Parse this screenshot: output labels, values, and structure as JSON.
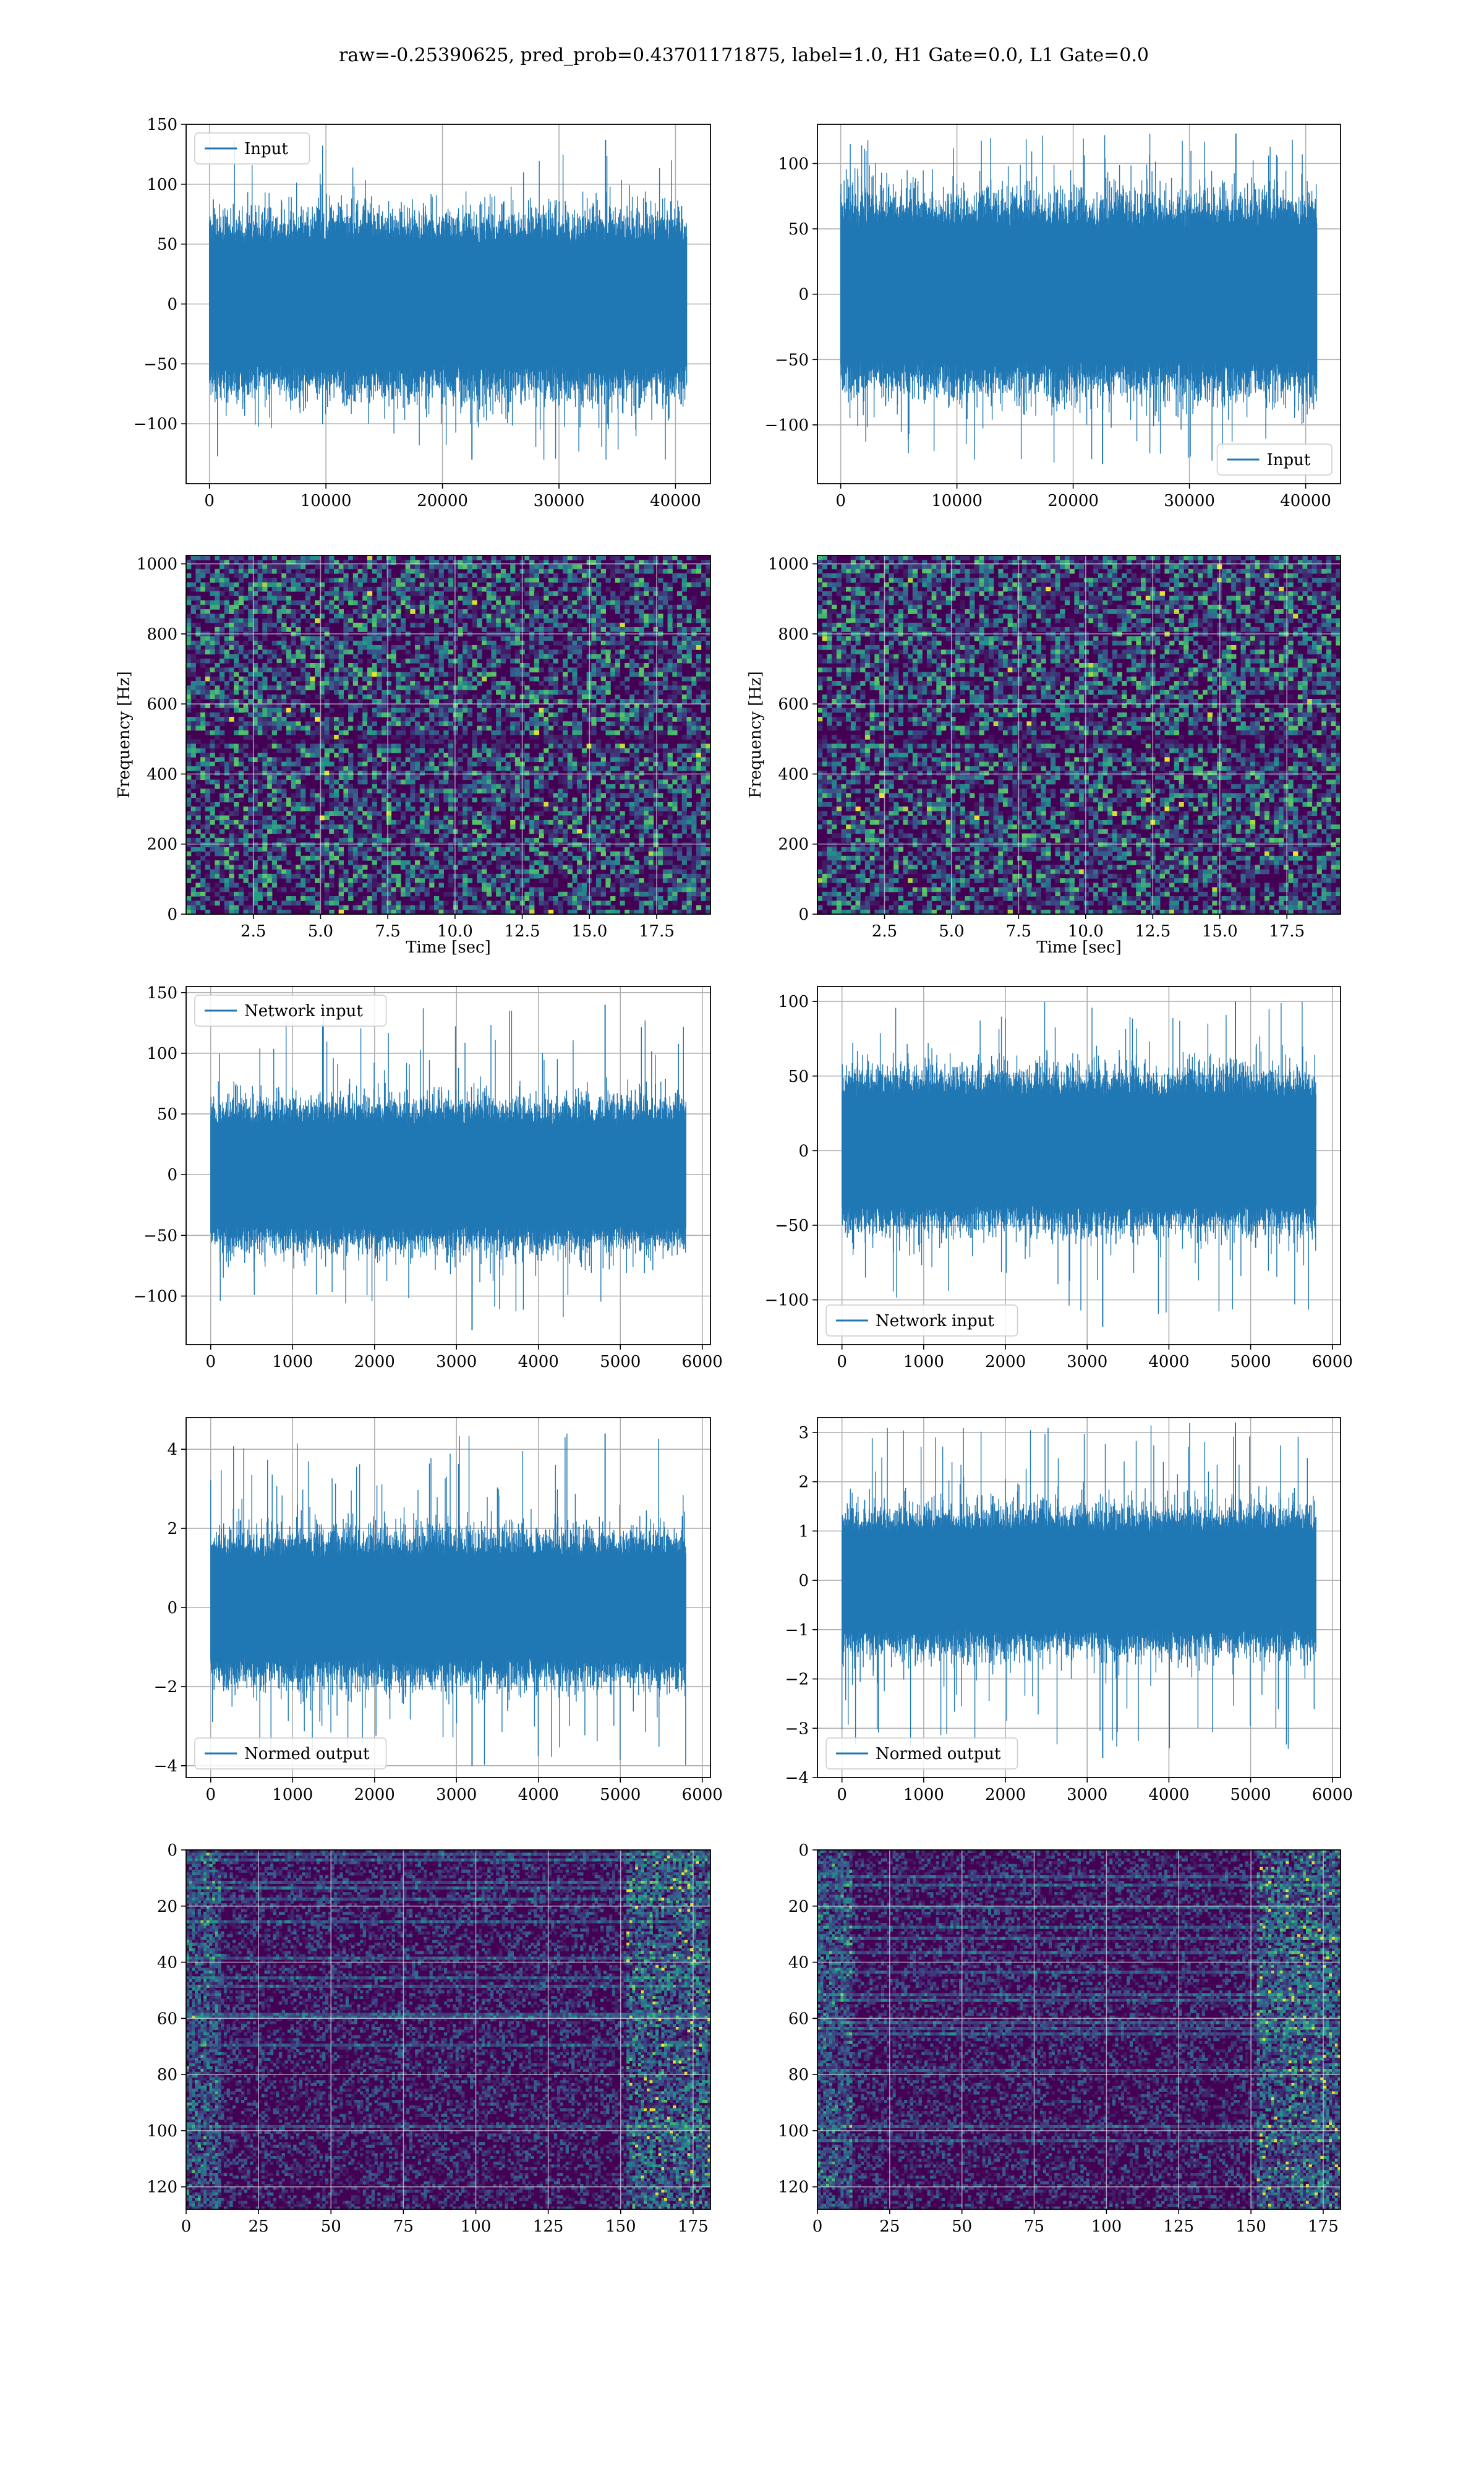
{
  "figure": {
    "suptitle": "raw=-0.25390625, pred_prob=0.43701171875, label=1.0, H1 Gate=0.0, L1 Gate=0.0"
  },
  "colors": {
    "line": "#1f77b4",
    "grid": "#b0b0b0",
    "spec_dark": "#440154",
    "spec_mid": "#31688e",
    "spec_bright": "#35b779",
    "spec_peak": "#fde725"
  },
  "chart_data": [
    {
      "id": "input_h1",
      "type": "line",
      "column": "left",
      "row": 1,
      "legend": "Input",
      "legend_loc": "upper left",
      "xlim": [
        -2000,
        43000
      ],
      "ylim": [
        -150,
        150
      ],
      "xticks": [
        0,
        10000,
        20000,
        30000,
        40000
      ],
      "xtick_labels": [
        "0",
        "10000",
        "20000",
        "30000",
        "40000"
      ],
      "yticks": [
        -100,
        -50,
        0,
        50,
        100,
        150
      ],
      "ytick_labels": [
        "−100",
        "−50",
        "0",
        "50",
        "100",
        "150"
      ],
      "x_range": [
        0,
        40960
      ],
      "envelope": 68,
      "max_spike": 137,
      "min_spike": -130,
      "grid": true
    },
    {
      "id": "input_l1",
      "type": "line",
      "column": "right",
      "row": 1,
      "legend": "Input",
      "legend_loc": "lower right",
      "xlim": [
        -2000,
        43000
      ],
      "ylim": [
        -145,
        130
      ],
      "xticks": [
        0,
        10000,
        20000,
        30000,
        40000
      ],
      "xtick_labels": [
        "0",
        "10000",
        "20000",
        "30000",
        "40000"
      ],
      "yticks": [
        -100,
        -50,
        0,
        50,
        100
      ],
      "ytick_labels": [
        "−100",
        "−50",
        "0",
        "50",
        "100"
      ],
      "x_range": [
        0,
        40960
      ],
      "envelope": 68,
      "max_spike": 123,
      "min_spike": -130,
      "grid": true
    },
    {
      "id": "spec_h1",
      "type": "heatmap",
      "column": "left",
      "row": 2,
      "xlabel": "Time [sec]",
      "ylabel": "Frequency [Hz]",
      "xlim": [
        0,
        19.5
      ],
      "ylim": [
        0,
        1024
      ],
      "xticks": [
        2.5,
        5.0,
        7.5,
        10.0,
        12.5,
        15.0,
        17.5
      ],
      "xtick_labels": [
        "2.5",
        "5.0",
        "7.5",
        "10.0",
        "12.5",
        "15.0",
        "17.5"
      ],
      "yticks": [
        0,
        200,
        400,
        600,
        800,
        1000
      ],
      "ytick_labels": [
        "0",
        "200",
        "400",
        "600",
        "800",
        "1000"
      ],
      "dark_band_hz": 500,
      "grid": true
    },
    {
      "id": "spec_l1",
      "type": "heatmap",
      "column": "right",
      "row": 2,
      "xlabel": "Time [sec]",
      "ylabel": "Frequency [Hz]",
      "xlim": [
        0,
        19.5
      ],
      "ylim": [
        0,
        1024
      ],
      "xticks": [
        2.5,
        5.0,
        7.5,
        10.0,
        12.5,
        15.0,
        17.5
      ],
      "xtick_labels": [
        "2.5",
        "5.0",
        "7.5",
        "10.0",
        "12.5",
        "15.0",
        "17.5"
      ],
      "yticks": [
        0,
        200,
        400,
        600,
        800,
        1000
      ],
      "ytick_labels": [
        "0",
        "200",
        "400",
        "600",
        "800",
        "1000"
      ],
      "dark_band_hz": 500,
      "grid": true
    },
    {
      "id": "netin_h1",
      "type": "line",
      "column": "left",
      "row": 3,
      "legend": "Network input",
      "legend_loc": "upper left",
      "xlim": [
        -300,
        6100
      ],
      "ylim": [
        -140,
        155
      ],
      "xticks": [
        0,
        1000,
        2000,
        3000,
        4000,
        5000,
        6000
      ],
      "xtick_labels": [
        "0",
        "1000",
        "2000",
        "3000",
        "4000",
        "5000",
        "6000"
      ],
      "yticks": [
        -100,
        -50,
        0,
        50,
        100,
        150
      ],
      "ytick_labels": [
        "−100",
        "−50",
        "0",
        "50",
        "100",
        "150"
      ],
      "x_range": [
        0,
        5800
      ],
      "envelope": 55,
      "max_spike": 140,
      "min_spike": -128,
      "grid": true
    },
    {
      "id": "netin_l1",
      "type": "line",
      "column": "right",
      "row": 3,
      "legend": "Network input",
      "legend_loc": "lower left",
      "xlim": [
        -300,
        6100
      ],
      "ylim": [
        -130,
        110
      ],
      "xticks": [
        0,
        1000,
        2000,
        3000,
        4000,
        5000,
        6000
      ],
      "xtick_labels": [
        "0",
        "1000",
        "2000",
        "3000",
        "4000",
        "5000",
        "6000"
      ],
      "yticks": [
        -100,
        -50,
        0,
        50,
        100
      ],
      "ytick_labels": [
        "−100",
        "−50",
        "0",
        "50",
        "100"
      ],
      "x_range": [
        0,
        5800
      ],
      "envelope": 48,
      "max_spike": 100,
      "min_spike": -118,
      "grid": true
    },
    {
      "id": "norm_h1",
      "type": "line",
      "column": "left",
      "row": 4,
      "legend": "Normed output",
      "legend_loc": "lower left",
      "xlim": [
        -300,
        6100
      ],
      "ylim": [
        -4.3,
        4.8
      ],
      "xticks": [
        0,
        1000,
        2000,
        3000,
        4000,
        5000,
        6000
      ],
      "xtick_labels": [
        "0",
        "1000",
        "2000",
        "3000",
        "4000",
        "5000",
        "6000"
      ],
      "yticks": [
        -4,
        -2,
        0,
        2,
        4
      ],
      "ytick_labels": [
        "−4",
        "−2",
        "0",
        "2",
        "4"
      ],
      "x_range": [
        0,
        5800
      ],
      "envelope": 1.7,
      "max_spike": 4.4,
      "min_spike": -4.0,
      "grid": true
    },
    {
      "id": "norm_l1",
      "type": "line",
      "column": "right",
      "row": 4,
      "legend": "Normed output",
      "legend_loc": "lower left",
      "xlim": [
        -300,
        6100
      ],
      "ylim": [
        -4.0,
        3.3
      ],
      "xticks": [
        0,
        1000,
        2000,
        3000,
        4000,
        5000,
        6000
      ],
      "xtick_labels": [
        "0",
        "1000",
        "2000",
        "3000",
        "4000",
        "5000",
        "6000"
      ],
      "yticks": [
        -4,
        -3,
        -2,
        -1,
        0,
        1,
        2,
        3
      ],
      "ytick_labels": [
        "−4",
        "−3",
        "−2",
        "−1",
        "0",
        "1",
        "2",
        "3"
      ],
      "x_range": [
        0,
        5800
      ],
      "envelope": 1.3,
      "max_spike": 3.2,
      "min_spike": -3.6,
      "grid": true
    },
    {
      "id": "feat_h1",
      "type": "heatmap",
      "column": "left",
      "row": 5,
      "xlim": [
        0,
        181
      ],
      "ylim": [
        128,
        0
      ],
      "xticks": [
        0,
        25,
        50,
        75,
        100,
        125,
        150,
        175
      ],
      "xtick_labels": [
        "0",
        "25",
        "50",
        "75",
        "100",
        "125",
        "150",
        "175"
      ],
      "yticks": [
        0,
        20,
        40,
        60,
        80,
        100,
        120
      ],
      "ytick_labels": [
        "0",
        "20",
        "40",
        "60",
        "80",
        "100",
        "120"
      ],
      "hot_zone_x": [
        152,
        181
      ],
      "grid": true
    },
    {
      "id": "feat_l1",
      "type": "heatmap",
      "column": "right",
      "row": 5,
      "xlim": [
        0,
        181
      ],
      "ylim": [
        128,
        0
      ],
      "xticks": [
        0,
        25,
        50,
        75,
        100,
        125,
        150,
        175
      ],
      "xtick_labels": [
        "0",
        "25",
        "50",
        "75",
        "100",
        "125",
        "150",
        "175"
      ],
      "yticks": [
        0,
        20,
        40,
        60,
        80,
        100,
        120
      ],
      "ytick_labels": [
        "0",
        "20",
        "40",
        "60",
        "80",
        "100",
        "120"
      ],
      "hot_zone_x": [
        152,
        181
      ],
      "grid": true
    }
  ]
}
